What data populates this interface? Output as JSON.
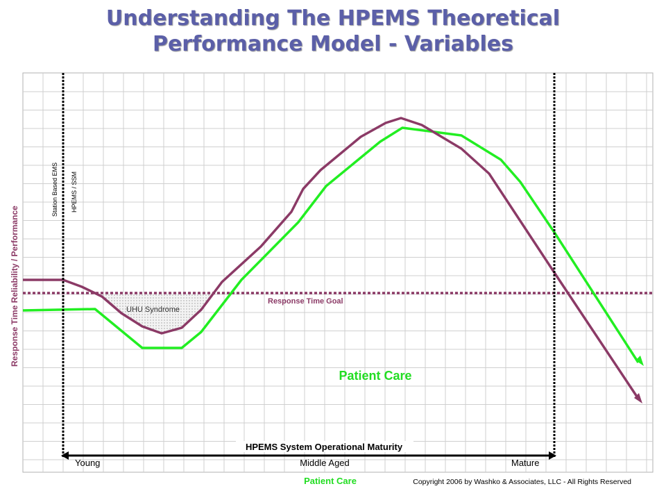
{
  "title": {
    "line1": "Understanding The HPEMS Theoretical",
    "line2": "Performance Model - Variables"
  },
  "diagram": {
    "y_axis_label": "Response Time Reliability / Performance",
    "marker_lines": [
      {
        "label": "Station Based EMS"
      },
      {
        "label": "HPEMS / SSM"
      }
    ],
    "goal_label": "Response Time Goal",
    "uhu_label": "UHU Syndrome",
    "patient_care_label": "Patient Care",
    "maturity_label": "HPEMS System Operational Maturity",
    "stages": [
      "Young",
      "Middle Aged",
      "Mature"
    ],
    "footer_legend": "Patient Care",
    "copyright": "Copyright 2006 by Washko & Associates, LLC - All Rights Reserved",
    "colors": {
      "title": "#5b5fa8",
      "response_time_curve": "#8b3a66",
      "patient_care_curve": "#22ee22",
      "goal_line": "#8b3a66",
      "grid": "#c8c8c8"
    }
  }
}
